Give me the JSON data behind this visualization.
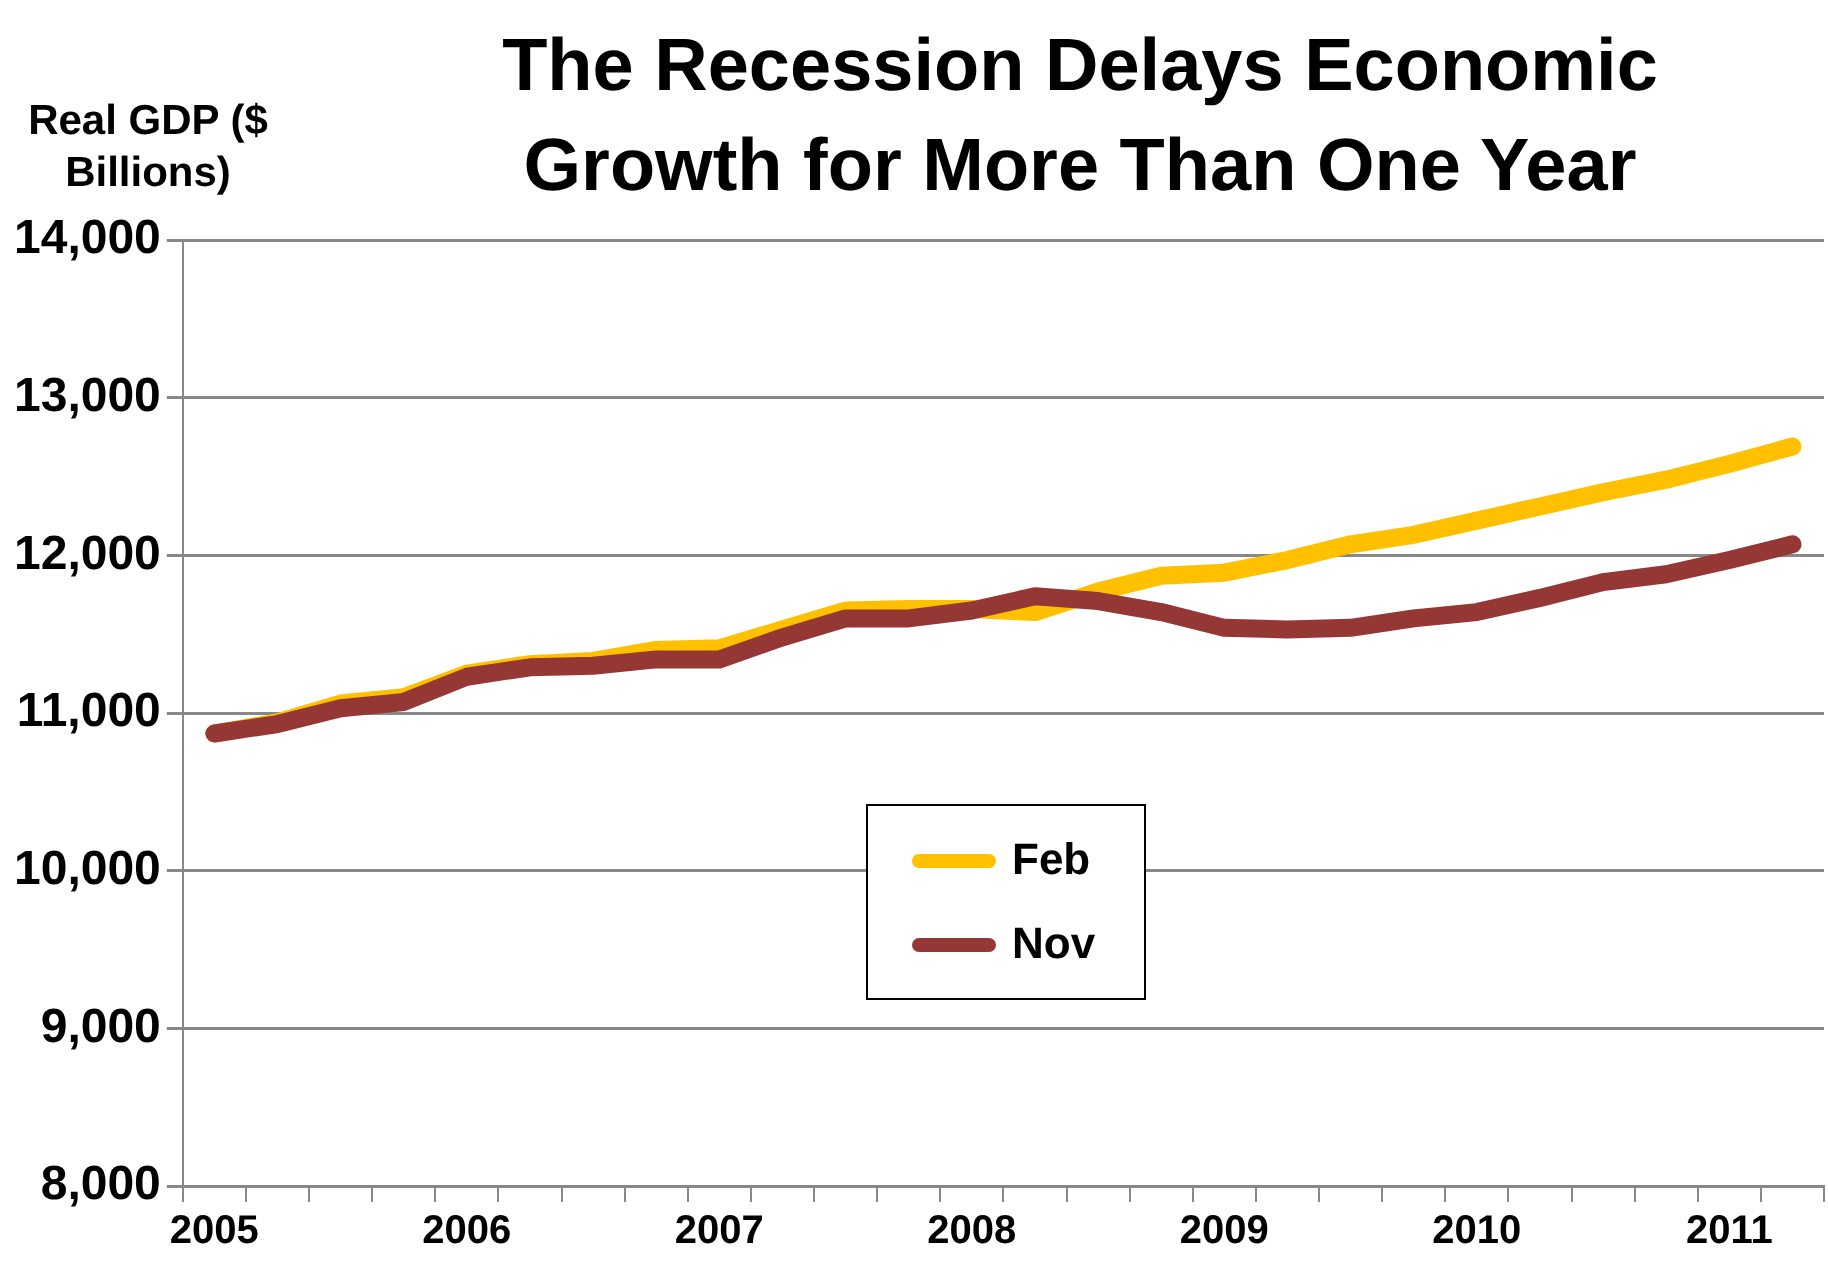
{
  "chart_data": {
    "type": "line",
    "title": "The Recession Delays Economic Growth for More Than One Year",
    "ylabel": "Real GDP ($ Billions)",
    "categories": [
      "2005",
      null,
      null,
      null,
      "2006",
      null,
      null,
      null,
      "2007",
      null,
      null,
      null,
      "2008",
      null,
      null,
      null,
      "2009",
      null,
      null,
      null,
      "2010",
      null,
      null,
      null,
      "2011",
      null
    ],
    "series": [
      {
        "name": "Feb",
        "color": "#ffc000",
        "values": [
          10870,
          10940,
          11060,
          11100,
          11250,
          11310,
          11330,
          11400,
          11410,
          11530,
          11650,
          11660,
          11660,
          11640,
          11770,
          11870,
          11890,
          11970,
          12070,
          12130,
          12220,
          12310,
          12400,
          12480,
          12580,
          12690
        ]
      },
      {
        "name": "Nov",
        "color": "#953735",
        "values": [
          10870,
          10930,
          11030,
          11070,
          11230,
          11290,
          11300,
          11340,
          11340,
          11480,
          11600,
          11600,
          11650,
          11740,
          11710,
          11640,
          11540,
          11530,
          11540,
          11600,
          11640,
          11730,
          11830,
          11880,
          11970,
          12070
        ]
      }
    ],
    "ylim": [
      8000,
      14000
    ],
    "yticks": [
      {
        "value": 8000,
        "label": "8,000"
      },
      {
        "value": 9000,
        "label": "9,000"
      },
      {
        "value": 10000,
        "label": "10,000"
      },
      {
        "value": 11000,
        "label": "11,000"
      },
      {
        "value": 12000,
        "label": "12,000"
      },
      {
        "value": 13000,
        "label": "13,000"
      },
      {
        "value": 14000,
        "label": "14,000"
      }
    ],
    "grid": "y",
    "legend": "bottom",
    "marker": "none",
    "line_style": "solid"
  }
}
